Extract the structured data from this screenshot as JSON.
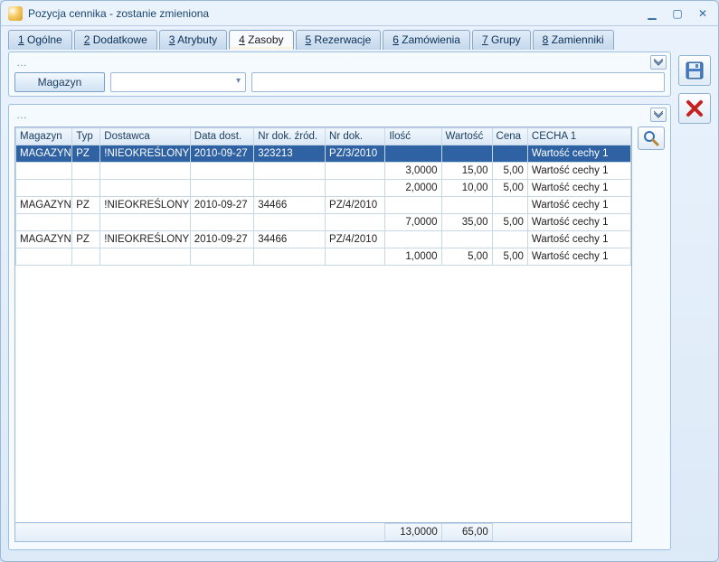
{
  "window": {
    "title": "Pozycja cennika - zostanie zmieniona"
  },
  "tabs": [
    {
      "key": "1",
      "label": "Ogólne"
    },
    {
      "key": "2",
      "label": "Dodatkowe"
    },
    {
      "key": "3",
      "label": "Atrybuty"
    },
    {
      "key": "4",
      "label": "Zasoby"
    },
    {
      "key": "5",
      "label": "Rezerwacje"
    },
    {
      "key": "6",
      "label": "Zamówienia"
    },
    {
      "key": "7",
      "label": "Grupy"
    },
    {
      "key": "8",
      "label": "Zamienniki"
    }
  ],
  "active_tab_index": 3,
  "top_panel": {
    "dots": "…",
    "magazyn_btn": "Magazyn",
    "combo_value": "",
    "input_value": ""
  },
  "grid_panel": {
    "dots": "…"
  },
  "columns": [
    {
      "key": "mag",
      "label": "Magazyn"
    },
    {
      "key": "typ",
      "label": "Typ"
    },
    {
      "key": "dost",
      "label": "Dostawca"
    },
    {
      "key": "data",
      "label": "Data dost."
    },
    {
      "key": "zrod",
      "label": "Nr dok. źród."
    },
    {
      "key": "nrdok",
      "label": "Nr dok."
    },
    {
      "key": "ilosc",
      "label": "Ilość",
      "num": true
    },
    {
      "key": "wart",
      "label": "Wartość",
      "num": true
    },
    {
      "key": "cena",
      "label": "Cena",
      "num": true
    },
    {
      "key": "cecha",
      "label": "CECHA 1"
    }
  ],
  "rows": [
    {
      "selected": true,
      "mag": "MAGAZYN",
      "typ": "PZ",
      "dost": "!NIEOKREŚLONY!",
      "data": "2010-09-27",
      "zrod": "323213",
      "nrdok": "PZ/3/2010",
      "ilosc": "",
      "wart": "",
      "cena": "",
      "cecha": "Wartość cechy 1"
    },
    {
      "mag": "",
      "typ": "",
      "dost": "",
      "data": "",
      "zrod": "",
      "nrdok": "",
      "ilosc": "3,0000",
      "wart": "15,00",
      "cena": "5,00",
      "cecha": "Wartość cechy 1"
    },
    {
      "mag": "",
      "typ": "",
      "dost": "",
      "data": "",
      "zrod": "",
      "nrdok": "",
      "ilosc": "2,0000",
      "wart": "10,00",
      "cena": "5,00",
      "cecha": "Wartość cechy 1"
    },
    {
      "mag": "MAGAZYN",
      "typ": "PZ",
      "dost": "!NIEOKREŚLONY!",
      "data": "2010-09-27",
      "zrod": "34466",
      "nrdok": "PZ/4/2010",
      "ilosc": "",
      "wart": "",
      "cena": "",
      "cecha": "Wartość cechy 1"
    },
    {
      "mag": "",
      "typ": "",
      "dost": "",
      "data": "",
      "zrod": "",
      "nrdok": "",
      "ilosc": "7,0000",
      "wart": "35,00",
      "cena": "5,00",
      "cecha": "Wartość cechy 1"
    },
    {
      "mag": "MAGAZYN",
      "typ": "PZ",
      "dost": "!NIEOKREŚLONY!",
      "data": "2010-09-27",
      "zrod": "34466",
      "nrdok": "PZ/4/2010",
      "ilosc": "",
      "wart": "",
      "cena": "",
      "cecha": "Wartość cechy 1"
    },
    {
      "mag": "",
      "typ": "",
      "dost": "",
      "data": "",
      "zrod": "",
      "nrdok": "",
      "ilosc": "1,0000",
      "wart": "5,00",
      "cena": "5,00",
      "cecha": "Wartość cechy 1"
    }
  ],
  "footer": {
    "ilosc": "13,0000",
    "wart": "65,00"
  }
}
